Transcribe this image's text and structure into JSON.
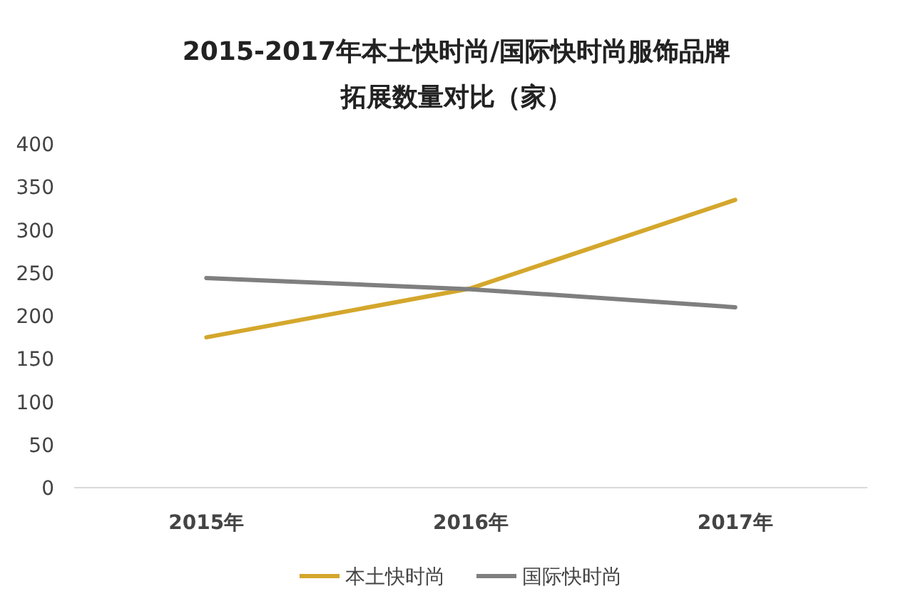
{
  "chart_data": {
    "type": "line",
    "title": "2015-2017年本土快时尚/国际快时尚服饰品牌拓展数量对比（家）",
    "categories": [
      "2015年",
      "2016年",
      "2017年"
    ],
    "series": [
      {
        "name": "本土快时尚",
        "color": "#d4a72c",
        "values": [
          175,
          232,
          335
        ]
      },
      {
        "name": "国际快时尚",
        "color": "#7f7f7f",
        "values": [
          244,
          231,
          210
        ]
      }
    ],
    "ylim": [
      0,
      400
    ],
    "yticks": [
      0,
      50,
      100,
      150,
      200,
      250,
      300,
      350,
      400
    ],
    "grid": false,
    "legend": "bottom",
    "marker": "none",
    "line_style": "solid"
  }
}
